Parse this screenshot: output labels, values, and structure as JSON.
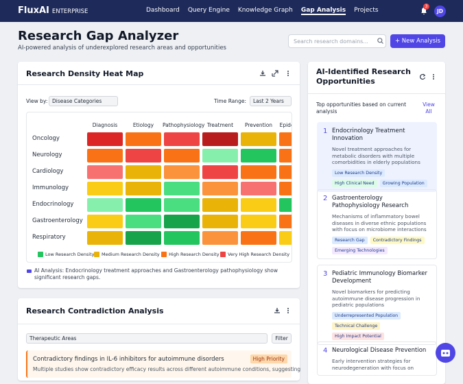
{
  "nav": {
    "brand": "FluxAI",
    "edition": "ENTERPRISE",
    "links": [
      "Dashboard",
      "Query Engine",
      "Knowledge Graph",
      "Gap Analysis",
      "Projects"
    ],
    "active": 3,
    "notifications": 3,
    "avatar": "JD"
  },
  "header": {
    "title": "Research Gap Analyzer",
    "subtitle": "AI-powered analysis of underexplored research areas and opportunities",
    "search_placeholder": "Search research domains...",
    "new_button": "+ New Analysis"
  },
  "heatmap": {
    "title": "Research Density Heat Map",
    "view_by_label": "View by:",
    "view_by": "Disease Categories",
    "time_range_label": "Time Range:",
    "time_range": "Last 2 Years",
    "columns": [
      "Diagnosis",
      "Etiology",
      "Pathophysiology",
      "Treatment",
      "Prevention",
      "Epidemiology"
    ],
    "rows": [
      {
        "label": "Oncology",
        "colors": [
          "#dc2626",
          "#f97316",
          "#ef4444",
          "#b91c1c",
          "#eab308",
          "#f97316"
        ]
      },
      {
        "label": "Neurology",
        "colors": [
          "#f97316",
          "#ef4444",
          "#f97316",
          "#86efac",
          "#22c55e",
          "#f97316"
        ]
      },
      {
        "label": "Cardiology",
        "colors": [
          "#f87171",
          "#eab308",
          "#fb923c",
          "#ef4444",
          "#f97316",
          "#f97316"
        ]
      },
      {
        "label": "Immunology",
        "colors": [
          "#facc15",
          "#eab308",
          "#4ade80",
          "#fb923c",
          "#f87171",
          "#f97316"
        ]
      },
      {
        "label": "Endocrinology",
        "colors": [
          "#86efac",
          "#22c55e",
          "#4ade80",
          "#eab308",
          "#facc15",
          "#22c55e"
        ]
      },
      {
        "label": "Gastroenterology",
        "colors": [
          "#facc15",
          "#4ade80",
          "#16a34a",
          "#eab308",
          "#facc15",
          "#f97316"
        ]
      },
      {
        "label": "Respiratory",
        "colors": [
          "#eab308",
          "#16a34a",
          "#22c55e",
          "#fb923c",
          "#f97316",
          "#facc15"
        ]
      }
    ],
    "legend": [
      {
        "label": "Low Research Density",
        "color": "#22c55e"
      },
      {
        "label": "Medium Research Density",
        "color": "#eab308"
      },
      {
        "label": "High Research Density",
        "color": "#f97316"
      },
      {
        "label": "Very High Research Density",
        "color": "#ef4444"
      }
    ],
    "ai_note": "AI Analysis: Endocrinology treatment approaches and Gastroenterology pathophysiology show significant research gaps."
  },
  "contradiction": {
    "title": "Research Contradiction Analysis",
    "filter_select": "Therapeutic Areas",
    "filter_button": "Filter",
    "item": {
      "title": "Contradictory findings in IL-6 inhibitors for autoimmune disorders",
      "priority": "High Priority",
      "text": "Multiple studies show contradictory efficacy results across different autoimmune conditions, suggesting"
    }
  },
  "opportunities": {
    "title": "AI-Identified Research Opportunities",
    "intro": "Top opportunities based on current analysis",
    "view_all": "View All",
    "items": [
      {
        "number": "1",
        "title": "Endocrinology Treatment Innovation",
        "text": "Novel treatment approaches for metabolic disorders with multiple comorbidities in elderly populations",
        "tags": [
          {
            "text": "Low Research Density",
            "color": "#dbeafe"
          },
          {
            "text": "High Clinical Need",
            "color": "#dcfce7"
          },
          {
            "text": "Growing Population",
            "color": "#dbeafe"
          }
        ]
      },
      {
        "number": "2",
        "title": "Gastroenterology Pathophysiology Research",
        "text": "Mechanisms of inflammatory bowel diseases in diverse ethnic populations with focus on microbiome interactions",
        "tags": [
          {
            "text": "Research Gap",
            "color": "#dbeafe"
          },
          {
            "text": "Contradictory Findings",
            "color": "#fef9c3"
          },
          {
            "text": "Emerging Technologies",
            "color": "#f3e8ff"
          }
        ]
      },
      {
        "number": "3",
        "title": "Pediatric Immunology Biomarker Development",
        "text": "Novel biomarkers for predicting autoimmune disease progression in pediatric populations",
        "tags": [
          {
            "text": "Underrepresented Population",
            "color": "#dbeafe"
          },
          {
            "text": "Technical Challenge",
            "color": "#fef3c7"
          },
          {
            "text": "High Impact Potential",
            "color": "#fee2e2"
          }
        ]
      },
      {
        "number": "4",
        "title": "Neurological Disease Prevention",
        "text": "Early intervention strategies for neurodegeneration with focus on",
        "tags": []
      }
    ]
  }
}
